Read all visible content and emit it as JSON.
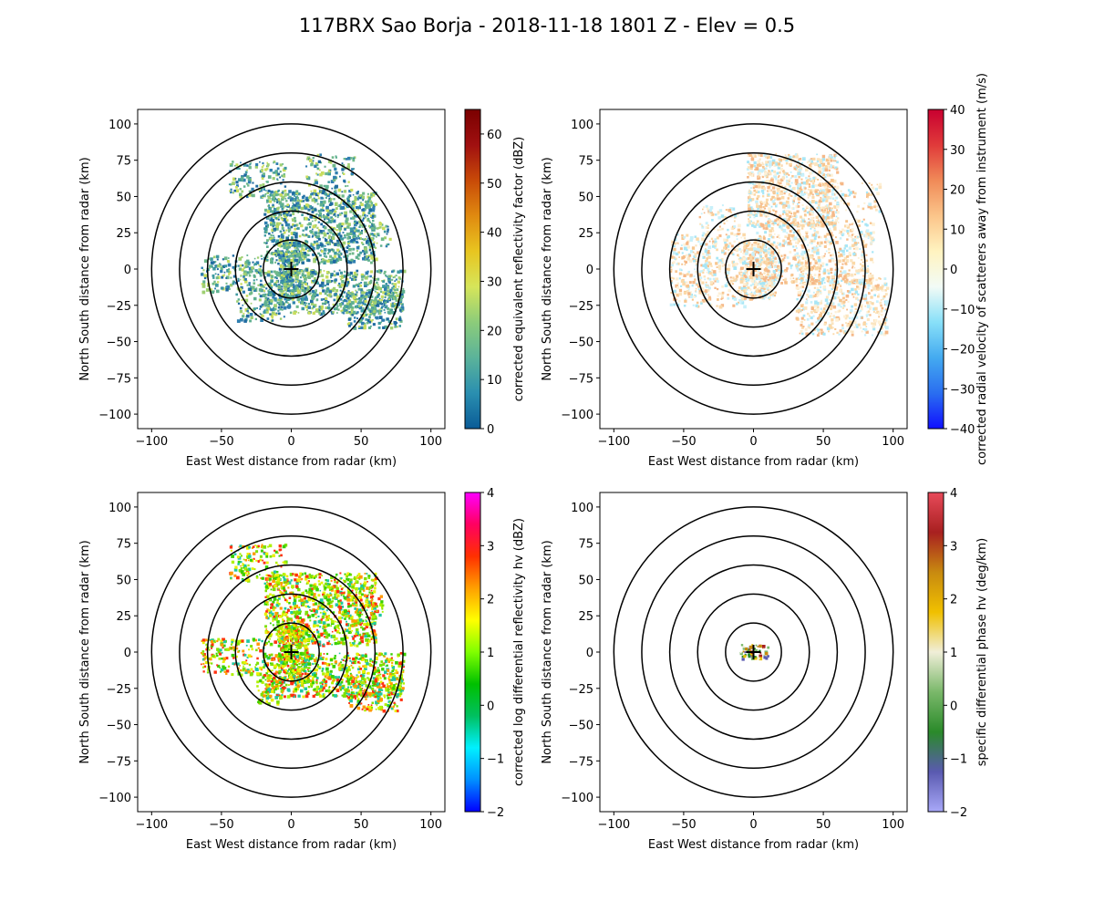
{
  "figure": {
    "title": "117BRX Sao Borja - 2018-11-18 1801 Z -  Elev = 0.5"
  },
  "chart_data": [
    {
      "type": "heatmap",
      "panel": "top-left",
      "field": "reflectivity",
      "xlabel": "East West distance from radar (km)",
      "ylabel": "North South distance from radar (km)",
      "xlim": [
        -110,
        110
      ],
      "ylim": [
        -110,
        110
      ],
      "xticks": [
        -100,
        -50,
        0,
        50,
        100
      ],
      "yticks": [
        -100,
        -75,
        -50,
        -25,
        0,
        25,
        50,
        75,
        100
      ],
      "range_rings_km": [
        20,
        40,
        60,
        80,
        100
      ],
      "radar_marker": [
        0,
        0
      ],
      "colorbar": {
        "label": "corrected equivalent reflectivity factor (dBZ)",
        "vmin": 0,
        "vmax": 65,
        "ticks": [
          0,
          10,
          20,
          30,
          40,
          50,
          60
        ],
        "colormap": [
          "#0a5b97",
          "#2a8fb0",
          "#5bb39a",
          "#8ccc7a",
          "#d6e55a",
          "#e8c520",
          "#e08a10",
          "#c84a08",
          "#a01010",
          "#7a0000"
        ]
      },
      "echo_colors": [
        "#3f9aa0",
        "#5fb090",
        "#6fb98a",
        "#9fcf72",
        "#c8dd5e",
        "#2f7fb0",
        "#1f6aa0"
      ]
    },
    {
      "type": "heatmap",
      "panel": "top-right",
      "field": "velocity",
      "xlabel": "East West distance from radar (km)",
      "ylabel": "North South distance from radar (km)",
      "xlim": [
        -110,
        110
      ],
      "ylim": [
        -110,
        110
      ],
      "xticks": [
        -100,
        -50,
        0,
        50,
        100
      ],
      "yticks": [
        -100,
        -75,
        -50,
        -25,
        0,
        25,
        50,
        75,
        100
      ],
      "range_rings_km": [
        20,
        40,
        60,
        80,
        100
      ],
      "radar_marker": [
        0,
        0
      ],
      "colorbar": {
        "label": "corrected radial velocity of scatterers away from instrument (m/s)",
        "vmin": -40,
        "vmax": 40,
        "ticks": [
          -40,
          -30,
          -20,
          -10,
          0,
          10,
          20,
          30,
          40
        ],
        "colormap": [
          "#1010ff",
          "#2a6ef0",
          "#44aaf0",
          "#88e0f8",
          "#f2fbf6",
          "#fff3c0",
          "#fbc58a",
          "#f08a58",
          "#e03a3a",
          "#c80030"
        ]
      },
      "echo_colors": [
        "#fbd9a8",
        "#f7c690",
        "#fbe5c0",
        "#fef0d6",
        "#a8e6f6",
        "#c8f0fa",
        "#f5b888"
      ]
    },
    {
      "type": "heatmap",
      "panel": "bottom-left",
      "field": "differential_reflectivity",
      "xlabel": "East West distance from radar (km)",
      "ylabel": "North South distance from radar (km)",
      "xlim": [
        -110,
        110
      ],
      "ylim": [
        -110,
        110
      ],
      "xticks": [
        -100,
        -50,
        0,
        50,
        100
      ],
      "yticks": [
        -100,
        -75,
        -50,
        -25,
        0,
        25,
        50,
        75,
        100
      ],
      "range_rings_km": [
        20,
        40,
        60,
        80,
        100
      ],
      "radar_marker": [
        0,
        0
      ],
      "colorbar": {
        "label": "corrected log differential reflectivity hv (dBZ)",
        "vmin": -2,
        "vmax": 4,
        "ticks": [
          -2,
          -1,
          0,
          1,
          2,
          3,
          4
        ],
        "colormap": [
          "#0000ff",
          "#0090ff",
          "#00f0ff",
          "#00c060",
          "#00c000",
          "#80ff00",
          "#ffff00",
          "#ffa000",
          "#ff3000",
          "#ff0060",
          "#ff00ff"
        ]
      },
      "echo_colors": [
        "#7ee000",
        "#e8f000",
        "#ff9a00",
        "#38d000",
        "#ff3010",
        "#20c8a0",
        "#b0f000"
      ]
    },
    {
      "type": "heatmap",
      "panel": "bottom-right",
      "field": "specific_differential_phase",
      "xlabel": "East West distance from radar (km)",
      "ylabel": "North South distance from radar (km)",
      "xlim": [
        -110,
        110
      ],
      "ylim": [
        -110,
        110
      ],
      "xticks": [
        -100,
        -50,
        0,
        50,
        100
      ],
      "yticks": [
        -100,
        -75,
        -50,
        -25,
        0,
        25,
        50,
        75,
        100
      ],
      "range_rings_km": [
        20,
        40,
        60,
        80,
        100
      ],
      "radar_marker": [
        0,
        0
      ],
      "colorbar": {
        "label": "specific differential phase hv (deg/km)",
        "vmin": -2,
        "vmax": 4,
        "ticks": [
          -2,
          -1,
          0,
          1,
          2,
          3,
          4
        ],
        "colormap": [
          "#a8a8f8",
          "#5a5ab0",
          "#2a8a2a",
          "#7ab86a",
          "#f0eed8",
          "#f0c000",
          "#c88a10",
          "#a82020",
          "#e84a5a"
        ]
      },
      "echo_colors": [
        "#e8c000",
        "#2a8a2a",
        "#f0eed8",
        "#c88a10",
        "#5a5ab0",
        "#a82020",
        "#7ab86a"
      ]
    }
  ]
}
